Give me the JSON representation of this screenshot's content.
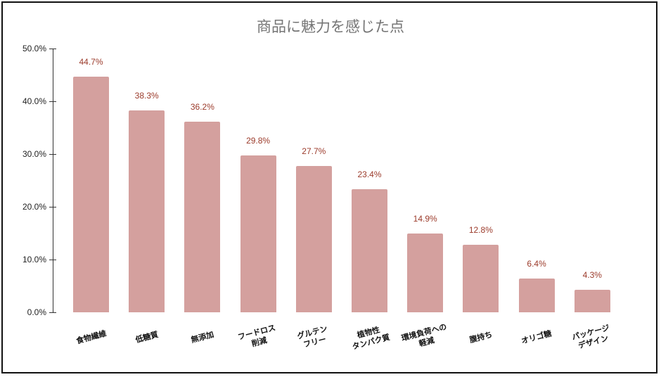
{
  "chart_data": {
    "type": "bar",
    "title": "商品に魅力を感じた点",
    "xlabel": "",
    "ylabel": "",
    "ylim": [
      0,
      50
    ],
    "yticks": [
      "0.0%",
      "10.0%",
      "20.0%",
      "30.0%",
      "40.0%",
      "50.0%"
    ],
    "grid": false,
    "legend": null,
    "categories": [
      "食物繊維",
      "低糖質",
      "無添加",
      "フードロス\n削減",
      "グルテン\nフリー",
      "植物性\nタンパク質",
      "環境負荷への\n軽減",
      "腹持ち",
      "オリゴ糖",
      "パッケージ\nデザイン"
    ],
    "values": [
      44.7,
      38.3,
      36.2,
      29.8,
      27.7,
      23.4,
      14.9,
      12.8,
      6.4,
      4.3
    ],
    "value_labels": [
      "44.7%",
      "38.3%",
      "36.2%",
      "29.8%",
      "27.7%",
      "23.4%",
      "14.9%",
      "12.8%",
      "6.4%",
      "4.3%"
    ],
    "colors": {
      "bar": "#d4a09e",
      "value_label": "#9b3a2a",
      "title": "#757575"
    }
  }
}
